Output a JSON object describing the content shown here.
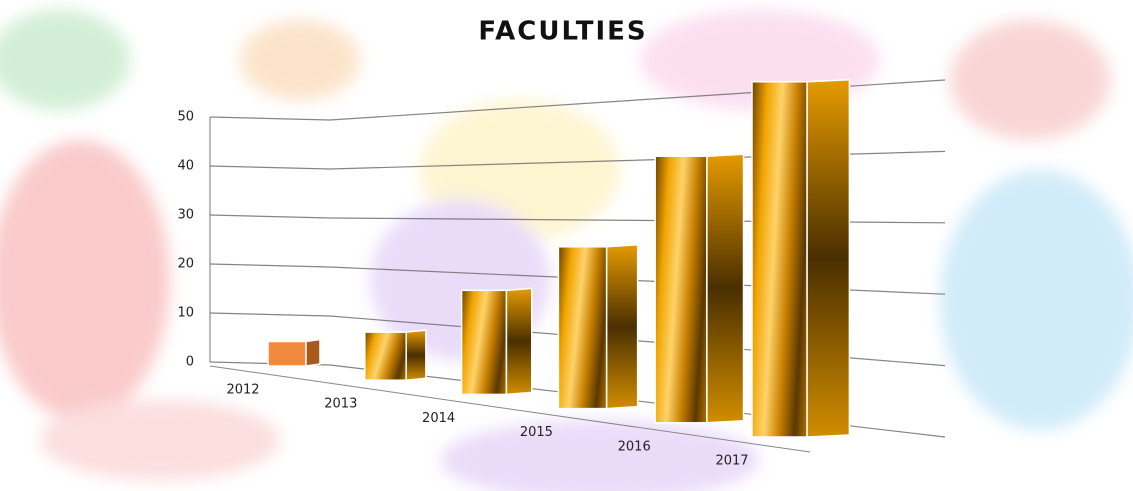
{
  "chart_data": {
    "type": "bar3d",
    "title": "FACULTIES",
    "categories": [
      "2012",
      "2013",
      "2014",
      "2015",
      "2016",
      "2017"
    ],
    "values": [
      5,
      9,
      18,
      26,
      40,
      50
    ],
    "color": "#c98a0a",
    "ylim": [
      0,
      50
    ],
    "yticks": [
      0,
      10,
      20,
      30,
      40,
      50
    ],
    "grid": true
  }
}
